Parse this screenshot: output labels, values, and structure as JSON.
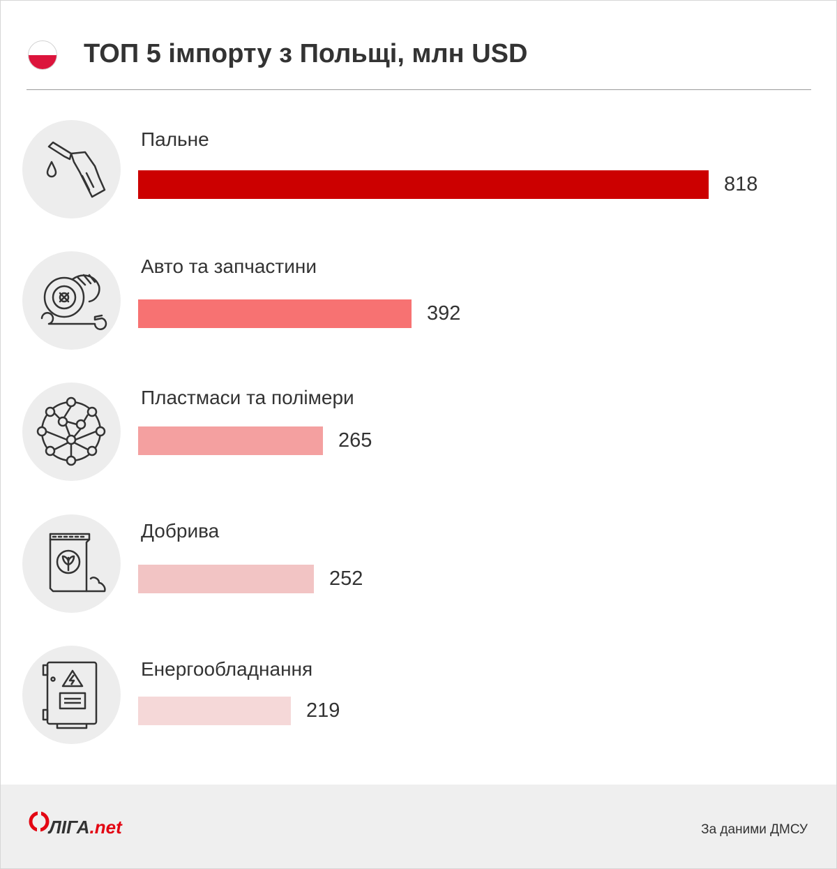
{
  "header": {
    "title": "ТОП 5 імпорту з Польщі, млн USD",
    "flag_colors": [
      "#ffffff",
      "#dc143c"
    ]
  },
  "chart_data": {
    "type": "bar",
    "orientation": "horizontal",
    "title": "ТОП 5 імпорту з Польщі, млн USD",
    "categories": [
      "Пальне",
      "Авто та запчастини",
      "Пластмаси та полімери",
      "Добрива",
      "Енергообладнання"
    ],
    "values": [
      818,
      392,
      265,
      252,
      219
    ],
    "icons": [
      "fuel-nozzle-icon",
      "car-parts-icon",
      "polymer-network-icon",
      "fertilizer-bag-icon",
      "electric-panel-icon"
    ],
    "colors": [
      "#cc0000",
      "#f77272",
      "#f4a0a0",
      "#f2c4c4",
      "#f5d8d8"
    ],
    "grid": false,
    "legend": "none"
  },
  "footer": {
    "logo_text_main": "ЛІГА",
    "logo_text_suffix": ".net",
    "source": "За даними ДМСУ"
  }
}
